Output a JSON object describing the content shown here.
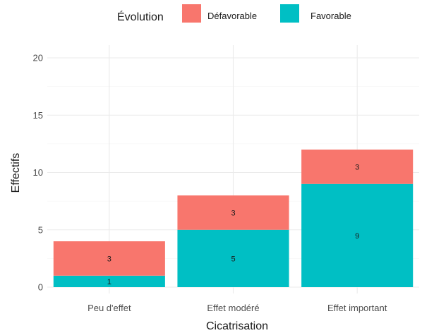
{
  "chart_data": {
    "type": "bar",
    "stacked": true,
    "title": "",
    "xlabel": "Cicatrisation",
    "ylabel": "Effectifs",
    "categories": [
      "Peu d'effet",
      "Effet modéré",
      "Effet important"
    ],
    "series": [
      {
        "name": "Favorable",
        "values": [
          1,
          5,
          9
        ],
        "color": "#00BFC4"
      },
      {
        "name": "Défavorable",
        "values": [
          3,
          3,
          3
        ],
        "color": "#F8766D"
      }
    ],
    "ylim": [
      0,
      21
    ],
    "yticks": [
      0,
      5,
      10,
      15,
      20
    ],
    "grid": true,
    "legend": {
      "title": "Évolution",
      "position": "top",
      "order": [
        "Défavorable",
        "Favorable"
      ]
    }
  }
}
